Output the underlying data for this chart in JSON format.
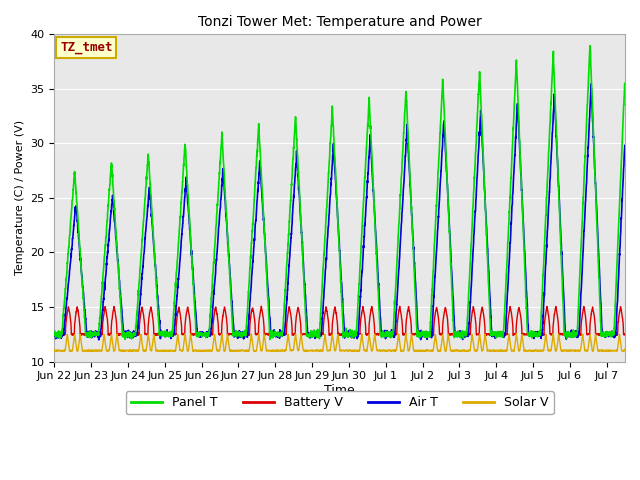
{
  "title": "Tonzi Tower Met: Temperature and Power",
  "xlabel": "Time",
  "ylabel": "Temperature (C) / Power (V)",
  "ylim": [
    10,
    40
  ],
  "bg_color": "#e8e8e8",
  "panel_t_color": "#00dd00",
  "battery_v_color": "#dd0000",
  "air_t_color": "#0000dd",
  "solar_v_color": "#ddaa00",
  "annotation_text": "TZ_tmet",
  "annotation_bg": "#ffffcc",
  "annotation_edge": "#ccaa00",
  "annotation_text_color": "#990000",
  "x_tick_labels": [
    "Jun 22",
    "Jun 23",
    "Jun 24",
    "Jun 25",
    "Jun 26",
    "Jun 27",
    "Jun 28",
    "Jun 29",
    "Jun 30",
    "Jul 1",
    "Jul 2",
    "Jul 3",
    "Jul 4",
    "Jul 5",
    "Jul 6",
    "Jul 7"
  ],
  "legend_labels": [
    "Panel T",
    "Battery V",
    "Air T",
    "Solar V"
  ]
}
